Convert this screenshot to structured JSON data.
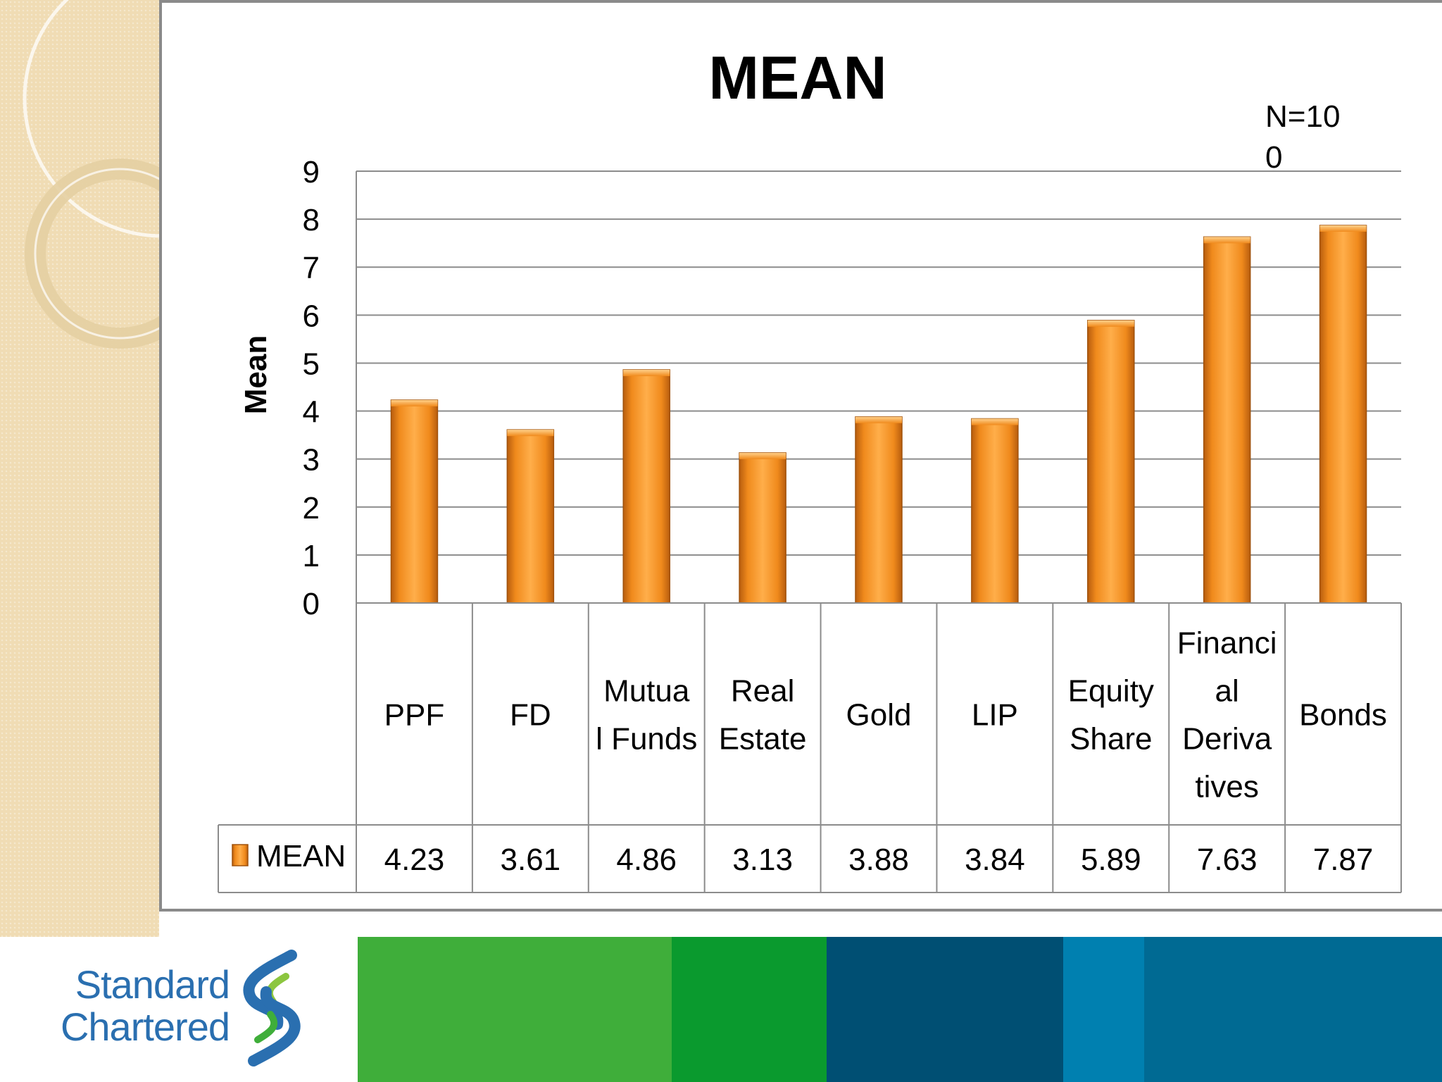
{
  "chart_data": {
    "type": "bar",
    "title": "MEAN",
    "ylabel": "Mean",
    "xlabel": "",
    "ylim": [
      0,
      9
    ],
    "yticks": [
      "0",
      "1",
      "2",
      "3",
      "4",
      "5",
      "6",
      "7",
      "8",
      "9"
    ],
    "annotation": [
      "N=10",
      "0"
    ],
    "categories": [
      [
        "PPF"
      ],
      [
        "FD"
      ],
      [
        "Mutua",
        "l Funds"
      ],
      [
        "Real",
        "Estate"
      ],
      [
        "Gold"
      ],
      [
        "LIP"
      ],
      [
        "Equity",
        "Share"
      ],
      [
        "Financi",
        "al",
        "Deriva",
        "tives"
      ],
      [
        "Bonds"
      ]
    ],
    "series": [
      {
        "name": "MEAN",
        "values": [
          4.23,
          3.61,
          4.86,
          3.13,
          3.88,
          3.84,
          5.89,
          7.63,
          7.87
        ]
      }
    ],
    "value_labels": [
      "4.23",
      "3.61",
      "4.86",
      "3.13",
      "3.88",
      "3.84",
      "5.89",
      "7.63",
      "7.87"
    ],
    "legend": "data-table",
    "bar_color": "#f08a1c",
    "grid": true
  },
  "footer": {
    "logo_line1": "Standard",
    "logo_line2": "Chartered",
    "band_colors": [
      "#3fae3a",
      "#0a9a2e",
      "#004f73",
      "#0080b0",
      "#006a93"
    ]
  }
}
